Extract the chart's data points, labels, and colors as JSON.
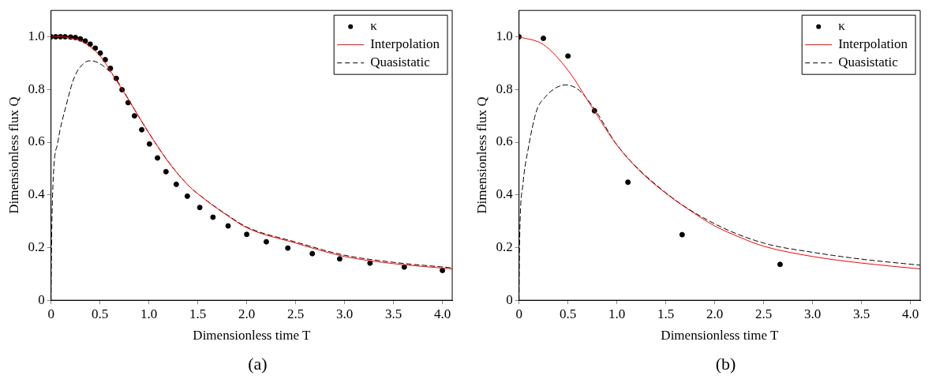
{
  "chart_data": [
    {
      "type": "line",
      "xlabel": "Dimensionless time T",
      "ylabel": "Dimensionless flux Q",
      "xlim": [
        0,
        4.1
      ],
      "ylim": [
        0,
        1.1
      ],
      "xticks": [
        0,
        0.5,
        {
          "value": 1,
          "label": "1.0"
        },
        1.5,
        {
          "value": 2,
          "label": "2.0"
        },
        2.5,
        {
          "value": 3,
          "label": "3.0"
        },
        3.5,
        {
          "value": 4,
          "label": "4.0"
        }
      ],
      "yticks": [
        0,
        0.2,
        0.4,
        0.6,
        0.8,
        {
          "value": 1,
          "label": "1.0"
        }
      ],
      "grid": false,
      "legend": "top right",
      "annotations": [
        "(a)"
      ],
      "series": [
        {
          "name": "κ",
          "type": "scatter",
          "marker": "circle",
          "color": "#000000",
          "x": [
            0,
            0.048,
            0.096,
            0.144,
            0.2,
            0.249,
            0.3,
            0.35,
            0.4,
            0.452,
            0.503,
            0.554,
            0.607,
            0.667,
            0.726,
            0.788,
            0.853,
            0.927,
            1.006,
            1.088,
            1.175,
            1.28,
            1.393,
            1.52,
            1.655,
            1.81,
            2.0,
            2.2,
            2.42,
            2.67,
            2.95,
            3.26,
            3.61,
            4.0
          ],
          "values": [
            1,
            1,
            1,
            1,
            0.999,
            0.997,
            0.992,
            0.984,
            0.972,
            0.957,
            0.938,
            0.913,
            0.88,
            0.842,
            0.799,
            0.75,
            0.7,
            0.647,
            0.593,
            0.54,
            0.488,
            0.44,
            0.395,
            0.352,
            0.315,
            0.282,
            0.25,
            0.222,
            0.198,
            0.177,
            0.157,
            0.141,
            0.126,
            0.113
          ]
        },
        {
          "name": "Interpolation",
          "type": "line",
          "marker": "none",
          "line_style": "solid",
          "color": "#ff0000",
          "x": [
            0,
            0.1,
            0.2,
            0.3,
            0.4,
            0.5,
            0.6,
            0.7,
            0.8,
            0.9,
            1.0,
            1.2,
            1.4,
            1.6,
            1.8,
            2.0,
            2.5,
            3.0,
            3.5,
            4.1
          ],
          "values": [
            1,
            1,
            0.995,
            0.985,
            0.962,
            0.928,
            0.875,
            0.815,
            0.757,
            0.695,
            0.635,
            0.525,
            0.437,
            0.375,
            0.322,
            0.275,
            0.217,
            0.166,
            0.139,
            0.119
          ]
        },
        {
          "name": "Quasistatic",
          "type": "line",
          "marker": "none",
          "line_style": "dashed",
          "color": "#000000",
          "x": [
            0,
            0.005,
            0.02,
            0.07,
            0.155,
            0.24,
            0.353,
            0.41,
            0.52,
            0.636,
            0.7,
            0.8,
            0.9,
            1.0,
            1.2,
            1.4,
            1.6,
            1.8,
            2.0,
            2.5,
            3.0,
            3.5,
            4.1
          ],
          "values": [
            0,
            0.2,
            0.44,
            0.6,
            0.74,
            0.848,
            0.904,
            0.909,
            0.893,
            0.853,
            0.82,
            0.757,
            0.695,
            0.635,
            0.525,
            0.437,
            0.376,
            0.324,
            0.278,
            0.221,
            0.171,
            0.144,
            0.123
          ]
        }
      ]
    },
    {
      "type": "line",
      "xlabel": "Dimensionless time T",
      "ylabel": "Dimensionless flux Q",
      "xlim": [
        0,
        4.1
      ],
      "ylim": [
        0,
        1.1
      ],
      "xticks": [
        0,
        0.5,
        {
          "value": 1,
          "label": "1.0"
        },
        1.5,
        {
          "value": 2,
          "label": "2.0"
        },
        2.5,
        {
          "value": 3,
          "label": "3.0"
        },
        3.5,
        {
          "value": 4,
          "label": "4.0"
        }
      ],
      "yticks": [
        0,
        0.2,
        0.4,
        0.6,
        0.8,
        {
          "value": 1,
          "label": "1.0"
        }
      ],
      "grid": false,
      "legend": "top right",
      "annotations": [
        "(b)"
      ],
      "series": [
        {
          "name": "κ",
          "type": "scatter",
          "marker": "circle",
          "color": "#000000",
          "x": [
            0,
            0.249,
            0.5,
            0.771,
            1.113,
            1.667,
            2.668
          ],
          "values": [
            1,
            0.994,
            0.927,
            0.719,
            0.448,
            0.249,
            0.136
          ]
        },
        {
          "name": "Interpolation",
          "type": "line",
          "marker": "none",
          "line_style": "solid",
          "color": "#ff0000",
          "x": [
            0,
            0.25,
            0.5,
            0.75,
            1.0,
            1.25,
            1.5,
            1.75,
            2.0,
            2.25,
            2.5,
            3.0,
            3.5,
            4.1
          ],
          "values": [
            1,
            0.97,
            0.873,
            0.73,
            0.589,
            0.485,
            0.406,
            0.34,
            0.282,
            0.24,
            0.205,
            0.166,
            0.141,
            0.119
          ]
        },
        {
          "name": "Quasistatic",
          "type": "line",
          "marker": "none",
          "line_style": "dashed",
          "color": "#000000",
          "x": [
            0,
            0.005,
            0.04,
            0.096,
            0.18,
            0.265,
            0.38,
            0.477,
            0.576,
            0.66,
            0.8,
            1.0,
            1.5,
            2.0,
            2.5,
            3.0,
            3.5,
            4.1
          ],
          "values": [
            0,
            0.2,
            0.44,
            0.579,
            0.72,
            0.77,
            0.807,
            0.817,
            0.807,
            0.78,
            0.71,
            0.59,
            0.408,
            0.29,
            0.217,
            0.182,
            0.156,
            0.133
          ]
        }
      ]
    }
  ]
}
